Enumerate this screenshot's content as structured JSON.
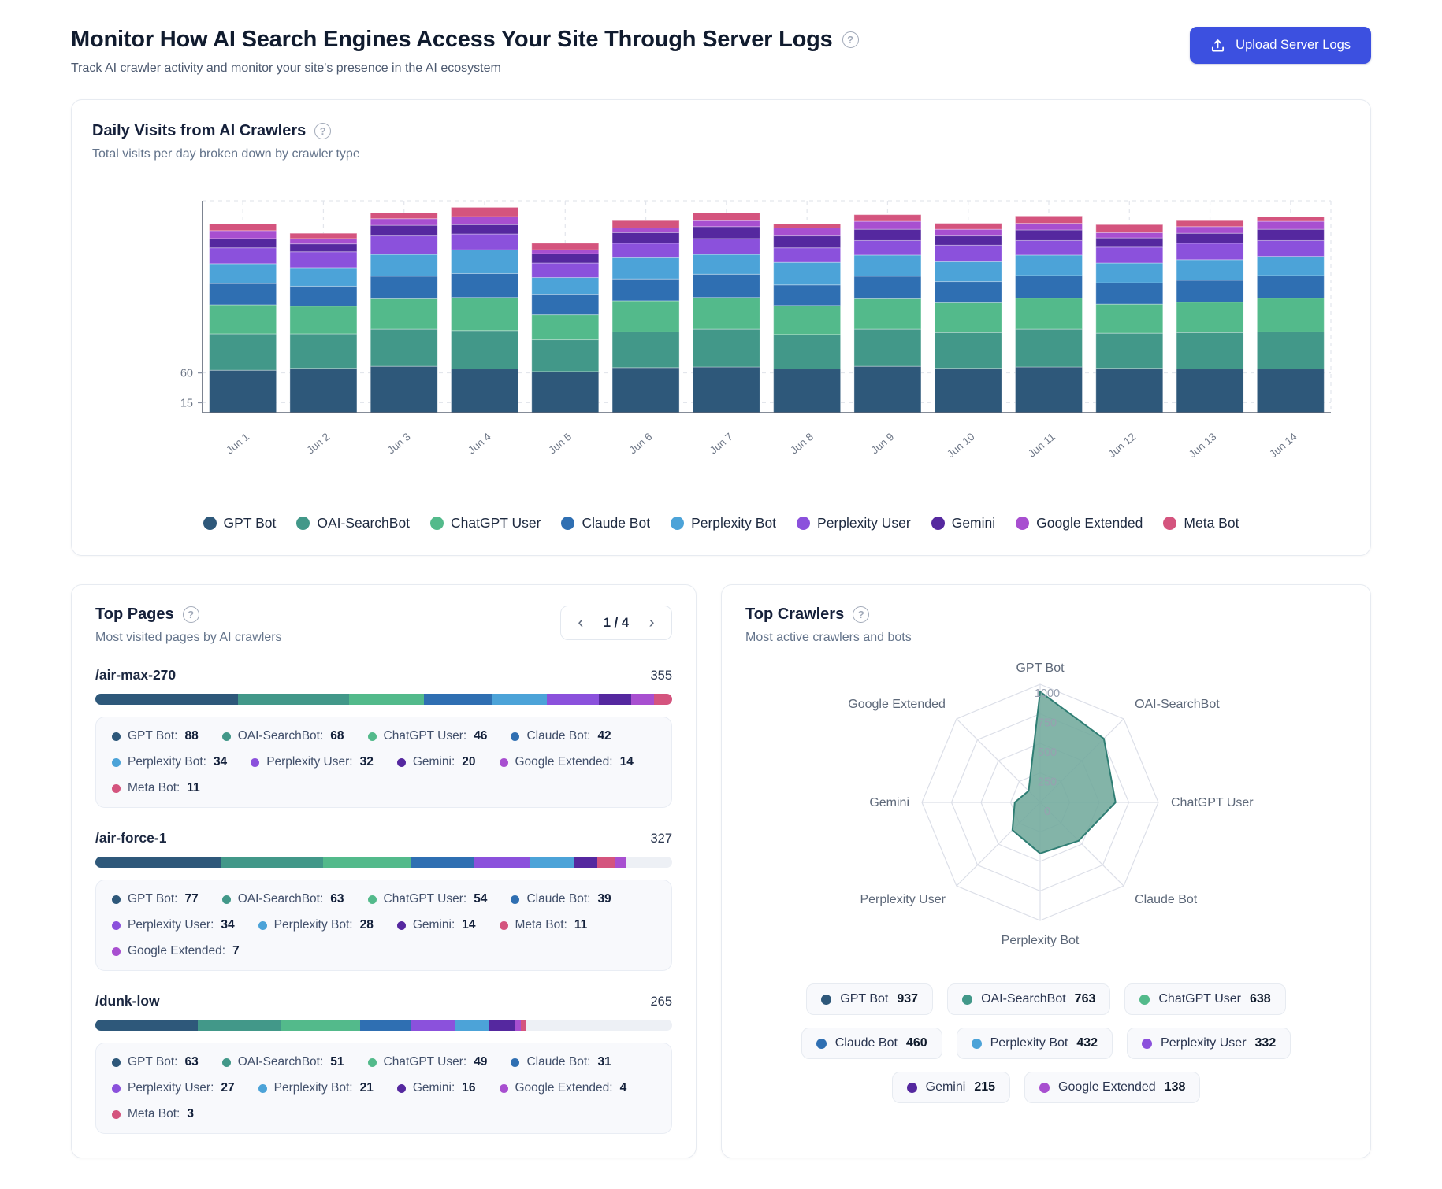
{
  "header": {
    "title": "Monitor How AI Search Engines Access Your Site Through Server Logs",
    "subtitle": "Track AI crawler activity and monitor your site's presence in the AI ecosystem",
    "upload_button": "Upload Server Logs",
    "help_glyph": "?"
  },
  "colors": {
    "GPT Bot": "#2e587a",
    "OAI-SearchBot": "#429889",
    "ChatGPT User": "#53ba8b",
    "Claude Bot": "#2f6fb2",
    "Perplexity Bot": "#4ca3d8",
    "Perplexity User": "#8b51dc",
    "Gemini": "#55289f",
    "Google Extended": "#a84fd0",
    "Meta Bot": "#d4547e",
    "accent_button": "#3c50e0",
    "bar_track": "#edf0f5",
    "radar_fill": "#72aa9c",
    "radar_stroke": "#2f7e74",
    "grid_line": "#e3e6ec"
  },
  "daily_card": {
    "title": "Daily Visits from AI Crawlers",
    "subtitle": "Total visits per day broken down by crawler type"
  },
  "chart_data": [
    {
      "type": "bar",
      "stacked": true,
      "title": "Daily Visits from AI Crawlers",
      "categories": [
        "Jun 1",
        "Jun 2",
        "Jun 3",
        "Jun 4",
        "Jun 5",
        "Jun 6",
        "Jun 7",
        "Jun 8",
        "Jun 9",
        "Jun 10",
        "Jun 11",
        "Jun 12",
        "Jun 13",
        "Jun 14"
      ],
      "series": [
        {
          "name": "GPT Bot",
          "values": [
            64,
            67,
            70,
            66,
            62,
            68,
            69,
            66,
            70,
            67,
            69,
            67,
            66,
            66
          ]
        },
        {
          "name": "OAI-SearchBot",
          "values": [
            55,
            52,
            56,
            58,
            48,
            54,
            57,
            52,
            56,
            54,
            57,
            53,
            55,
            56
          ]
        },
        {
          "name": "ChatGPT User",
          "values": [
            44,
            42,
            46,
            50,
            38,
            47,
            48,
            44,
            46,
            45,
            47,
            44,
            46,
            51
          ]
        },
        {
          "name": "Claude Bot",
          "values": [
            32,
            30,
            34,
            36,
            30,
            33,
            35,
            31,
            34,
            32,
            34,
            32,
            33,
            34
          ]
        },
        {
          "name": "Perplexity Bot",
          "values": [
            30,
            28,
            33,
            36,
            26,
            32,
            30,
            34,
            32,
            30,
            31,
            30,
            31,
            29
          ]
        },
        {
          "name": "Perplexity User",
          "values": [
            24,
            24,
            28,
            24,
            22,
            22,
            24,
            22,
            22,
            25,
            22,
            24,
            25,
            24
          ]
        },
        {
          "name": "Gemini",
          "values": [
            14,
            12,
            16,
            14,
            14,
            16,
            18,
            18,
            17,
            14,
            16,
            14,
            15,
            17
          ]
        },
        {
          "name": "Google Extended",
          "values": [
            12,
            8,
            10,
            12,
            6,
            7,
            9,
            12,
            12,
            10,
            10,
            8,
            10,
            12
          ]
        },
        {
          "name": "Meta Bot",
          "values": [
            10,
            8,
            9,
            14,
            10,
            11,
            12,
            6,
            10,
            9,
            11,
            12,
            9,
            7
          ]
        }
      ],
      "xlabel": "",
      "ylabel": "",
      "yticks": [
        15,
        60
      ],
      "ylim": [
        0,
        320
      ],
      "grid": "dashed",
      "legend_position": "bottom"
    },
    {
      "type": "radar",
      "title": "Top Crawlers",
      "categories": [
        "GPT Bot",
        "OAI-SearchBot",
        "ChatGPT User",
        "Claude Bot",
        "Perplexity Bot",
        "Perplexity User",
        "Gemini",
        "Google Extended"
      ],
      "values": [
        937,
        763,
        638,
        460,
        432,
        332,
        215,
        138
      ],
      "rticks": [
        0,
        250,
        500,
        750,
        1000
      ],
      "rmax": 1000,
      "grid": "polygon-web"
    }
  ],
  "top_pages": {
    "title": "Top Pages",
    "subtitle": "Most visited pages by AI crawlers",
    "pagination": "1 / 4",
    "prev_icon": "‹",
    "next_icon": "›",
    "max_total": 355,
    "pages": [
      {
        "path": "/air-max-270",
        "total": 355,
        "breakdown": [
          {
            "name": "GPT Bot",
            "value": 88
          },
          {
            "name": "OAI-SearchBot",
            "value": 68
          },
          {
            "name": "ChatGPT User",
            "value": 46
          },
          {
            "name": "Claude Bot",
            "value": 42
          },
          {
            "name": "Perplexity Bot",
            "value": 34
          },
          {
            "name": "Perplexity User",
            "value": 32
          },
          {
            "name": "Gemini",
            "value": 20
          },
          {
            "name": "Google Extended",
            "value": 14
          },
          {
            "name": "Meta Bot",
            "value": 11
          }
        ]
      },
      {
        "path": "/air-force-1",
        "total": 327,
        "breakdown": [
          {
            "name": "GPT Bot",
            "value": 77
          },
          {
            "name": "OAI-SearchBot",
            "value": 63
          },
          {
            "name": "ChatGPT User",
            "value": 54
          },
          {
            "name": "Claude Bot",
            "value": 39
          },
          {
            "name": "Perplexity User",
            "value": 34
          },
          {
            "name": "Perplexity Bot",
            "value": 28
          },
          {
            "name": "Gemini",
            "value": 14
          },
          {
            "name": "Meta Bot",
            "value": 11
          },
          {
            "name": "Google Extended",
            "value": 7
          }
        ]
      },
      {
        "path": "/dunk-low",
        "total": 265,
        "breakdown": [
          {
            "name": "GPT Bot",
            "value": 63
          },
          {
            "name": "OAI-SearchBot",
            "value": 51
          },
          {
            "name": "ChatGPT User",
            "value": 49
          },
          {
            "name": "Claude Bot",
            "value": 31
          },
          {
            "name": "Perplexity User",
            "value": 27
          },
          {
            "name": "Perplexity Bot",
            "value": 21
          },
          {
            "name": "Gemini",
            "value": 16
          },
          {
            "name": "Google Extended",
            "value": 4
          },
          {
            "name": "Meta Bot",
            "value": 3
          }
        ]
      }
    ]
  },
  "top_crawlers": {
    "title": "Top Crawlers",
    "subtitle": "Most active crawlers and bots",
    "badges": [
      {
        "name": "GPT Bot",
        "value": 937
      },
      {
        "name": "OAI-SearchBot",
        "value": 763
      },
      {
        "name": "ChatGPT User",
        "value": 638
      },
      {
        "name": "Claude Bot",
        "value": 460
      },
      {
        "name": "Perplexity Bot",
        "value": 432
      },
      {
        "name": "Perplexity User",
        "value": 332
      },
      {
        "name": "Gemini",
        "value": 215
      },
      {
        "name": "Google Extended",
        "value": 138
      }
    ]
  }
}
